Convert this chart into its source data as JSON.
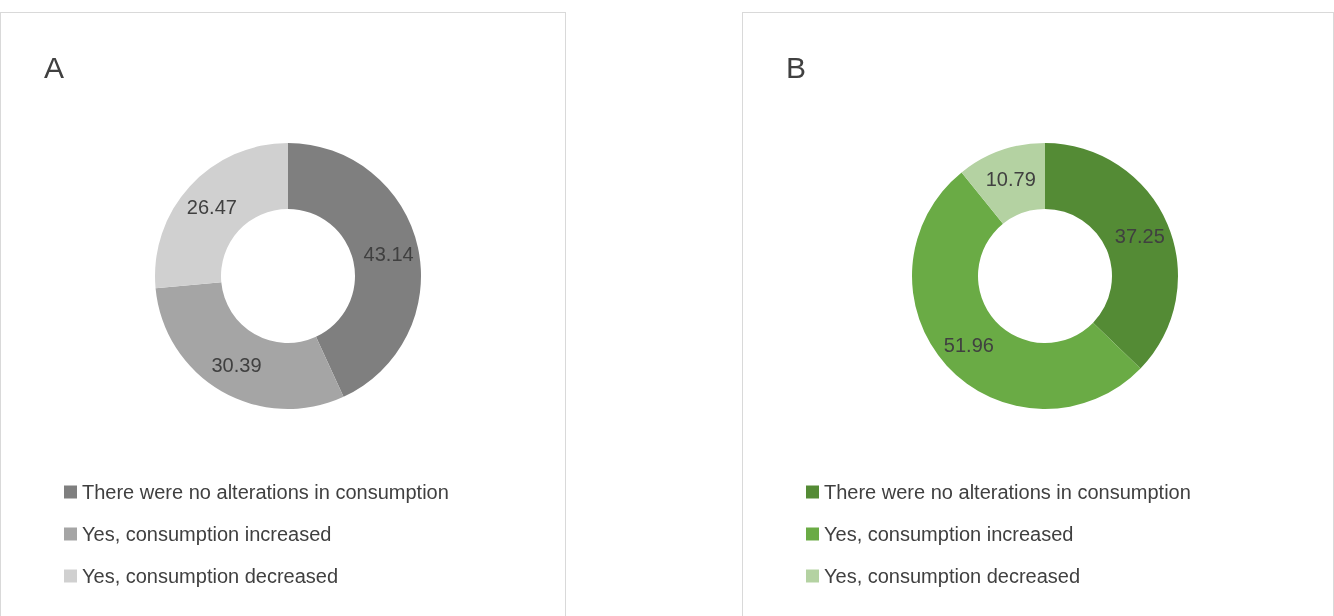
{
  "chart_data": [
    {
      "type": "donut",
      "title": "A",
      "categories": [
        "There were no alterations in consumption",
        "Yes, consumption increased",
        "Yes, consumption decreased"
      ],
      "values": [
        43.14,
        30.39,
        26.47
      ],
      "colors": [
        "#7f7f7f",
        "#a5a5a5",
        "#d0d0d0"
      ],
      "data_labels": true,
      "legend": "bottom"
    },
    {
      "type": "donut",
      "title": "B",
      "categories": [
        "There were no alterations in consumption",
        "Yes, consumption increased",
        "Yes, consumption decreased"
      ],
      "values": [
        37.25,
        51.96,
        10.79
      ],
      "colors": [
        "#548b35",
        "#6aab45",
        "#b4d2a2"
      ],
      "data_labels": true,
      "legend": "bottom"
    }
  ]
}
